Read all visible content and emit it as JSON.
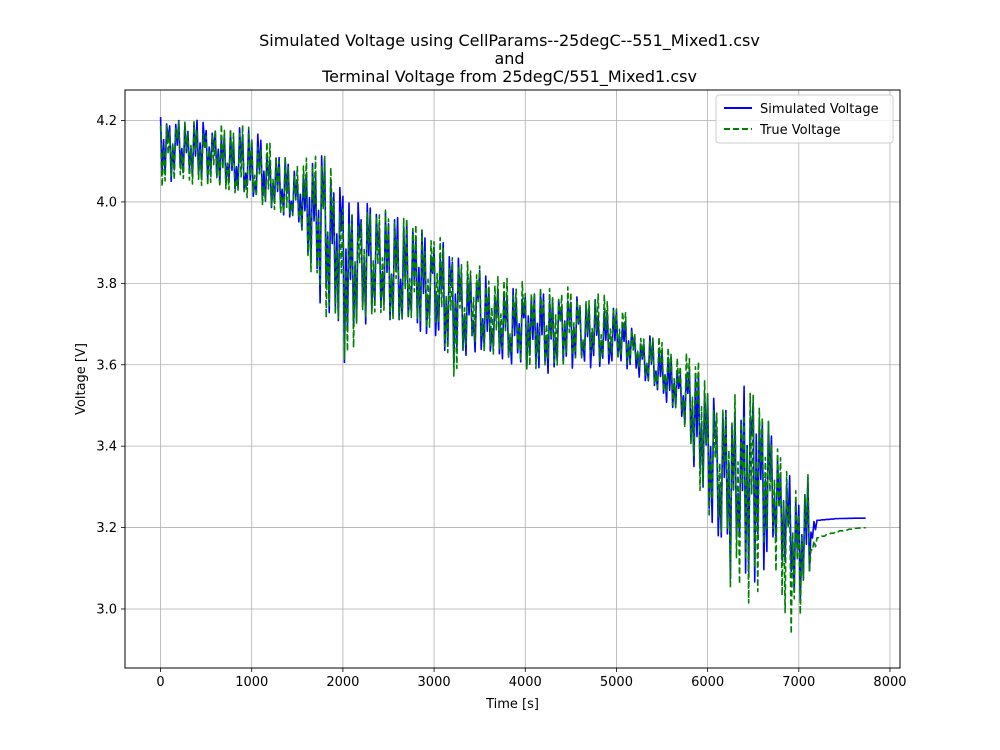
{
  "chart_data": {
    "type": "line",
    "title_lines": [
      "Simulated Voltage using CellParams--25degC--551_Mixed1.csv",
      "and",
      "Terminal Voltage from 25degC/551_Mixed1.csv"
    ],
    "xlabel": "Time [s]",
    "ylabel": "Voltage [V]",
    "xlim": [
      -390,
      8110
    ],
    "ylim": [
      2.855,
      4.275
    ],
    "xticks": [
      0,
      1000,
      2000,
      3000,
      4000,
      5000,
      6000,
      7000,
      8000
    ],
    "xtick_labels": [
      "0",
      "1000",
      "2000",
      "3000",
      "4000",
      "5000",
      "6000",
      "7000",
      "8000"
    ],
    "yticks": [
      3.0,
      3.2,
      3.4,
      3.6,
      3.8,
      4.0,
      4.2
    ],
    "ytick_labels": [
      "3.0",
      "3.2",
      "3.4",
      "3.6",
      "3.8",
      "4.0",
      "4.2"
    ],
    "grid": true,
    "legend_position": "upper right",
    "envelope_step_s": 50,
    "series": [
      {
        "name": "Simulated Voltage",
        "color": "#0000ff",
        "style": "solid",
        "x": [
          0,
          500,
          1000,
          1500,
          1800,
          2000,
          2300,
          2600,
          3000,
          3200,
          3400,
          3600,
          4000,
          4500,
          5000,
          5200,
          5400,
          5700,
          5900,
          6100,
          6300,
          6500,
          6700,
          6900,
          7000,
          7100,
          7150,
          7200,
          7400,
          7600,
          7730
        ],
        "center": [
          4.15,
          4.12,
          4.07,
          4.0,
          3.95,
          3.85,
          3.87,
          3.82,
          3.79,
          3.75,
          3.74,
          3.7,
          3.69,
          3.68,
          3.67,
          3.63,
          3.58,
          3.52,
          3.45,
          3.35,
          3.33,
          3.36,
          3.32,
          3.2,
          3.16,
          3.2,
          3.19,
          3.218,
          3.222,
          3.223,
          3.223
        ],
        "low": [
          4.05,
          4.05,
          4.01,
          3.95,
          3.7,
          3.59,
          3.71,
          3.7,
          3.66,
          3.56,
          3.62,
          3.62,
          3.57,
          3.58,
          3.6,
          3.58,
          3.53,
          3.47,
          3.28,
          3.14,
          3.05,
          3.05,
          3.13,
          3.01,
          3.0,
          3.09,
          3.17,
          3.218,
          3.222,
          3.223,
          3.223
        ],
        "high": [
          4.21,
          4.2,
          4.18,
          4.08,
          4.15,
          4.03,
          3.99,
          3.97,
          3.92,
          3.88,
          3.85,
          3.83,
          3.79,
          3.78,
          3.74,
          3.68,
          3.67,
          3.6,
          3.65,
          3.49,
          3.55,
          3.56,
          3.46,
          3.33,
          3.31,
          3.33,
          3.22,
          3.218,
          3.222,
          3.223,
          3.223
        ]
      },
      {
        "name": "True Voltage",
        "color": "#008000",
        "style": "dashed",
        "x": [
          0,
          500,
          1000,
          1500,
          1800,
          2000,
          2300,
          2600,
          3000,
          3200,
          3400,
          3600,
          4000,
          4500,
          5000,
          5200,
          5400,
          5700,
          5900,
          6100,
          6300,
          6500,
          6700,
          6900,
          7000,
          7100,
          7150,
          7200,
          7400,
          7600,
          7730
        ],
        "center": [
          4.14,
          4.11,
          4.06,
          3.99,
          3.94,
          3.84,
          3.86,
          3.81,
          3.79,
          3.75,
          3.74,
          3.71,
          3.7,
          3.69,
          3.68,
          3.64,
          3.59,
          3.53,
          3.46,
          3.36,
          3.34,
          3.37,
          3.33,
          3.17,
          3.14,
          3.18,
          3.15,
          3.175,
          3.19,
          3.198,
          3.2
        ],
        "low": [
          4.03,
          4.04,
          4.0,
          3.94,
          3.71,
          3.6,
          3.72,
          3.71,
          3.67,
          3.57,
          3.63,
          3.63,
          3.58,
          3.6,
          3.61,
          3.59,
          3.54,
          3.48,
          3.29,
          3.14,
          3.02,
          2.99,
          3.12,
          2.93,
          2.96,
          3.04,
          3.14,
          3.175,
          3.19,
          3.198,
          3.2
        ],
        "high": [
          4.2,
          4.2,
          4.19,
          4.09,
          4.15,
          4.02,
          3.99,
          3.97,
          3.93,
          3.88,
          3.86,
          3.84,
          3.8,
          3.79,
          3.77,
          3.69,
          3.68,
          3.62,
          3.66,
          3.5,
          3.54,
          3.55,
          3.45,
          3.3,
          3.3,
          3.33,
          3.18,
          3.175,
          3.19,
          3.198,
          3.2
        ]
      }
    ]
  }
}
